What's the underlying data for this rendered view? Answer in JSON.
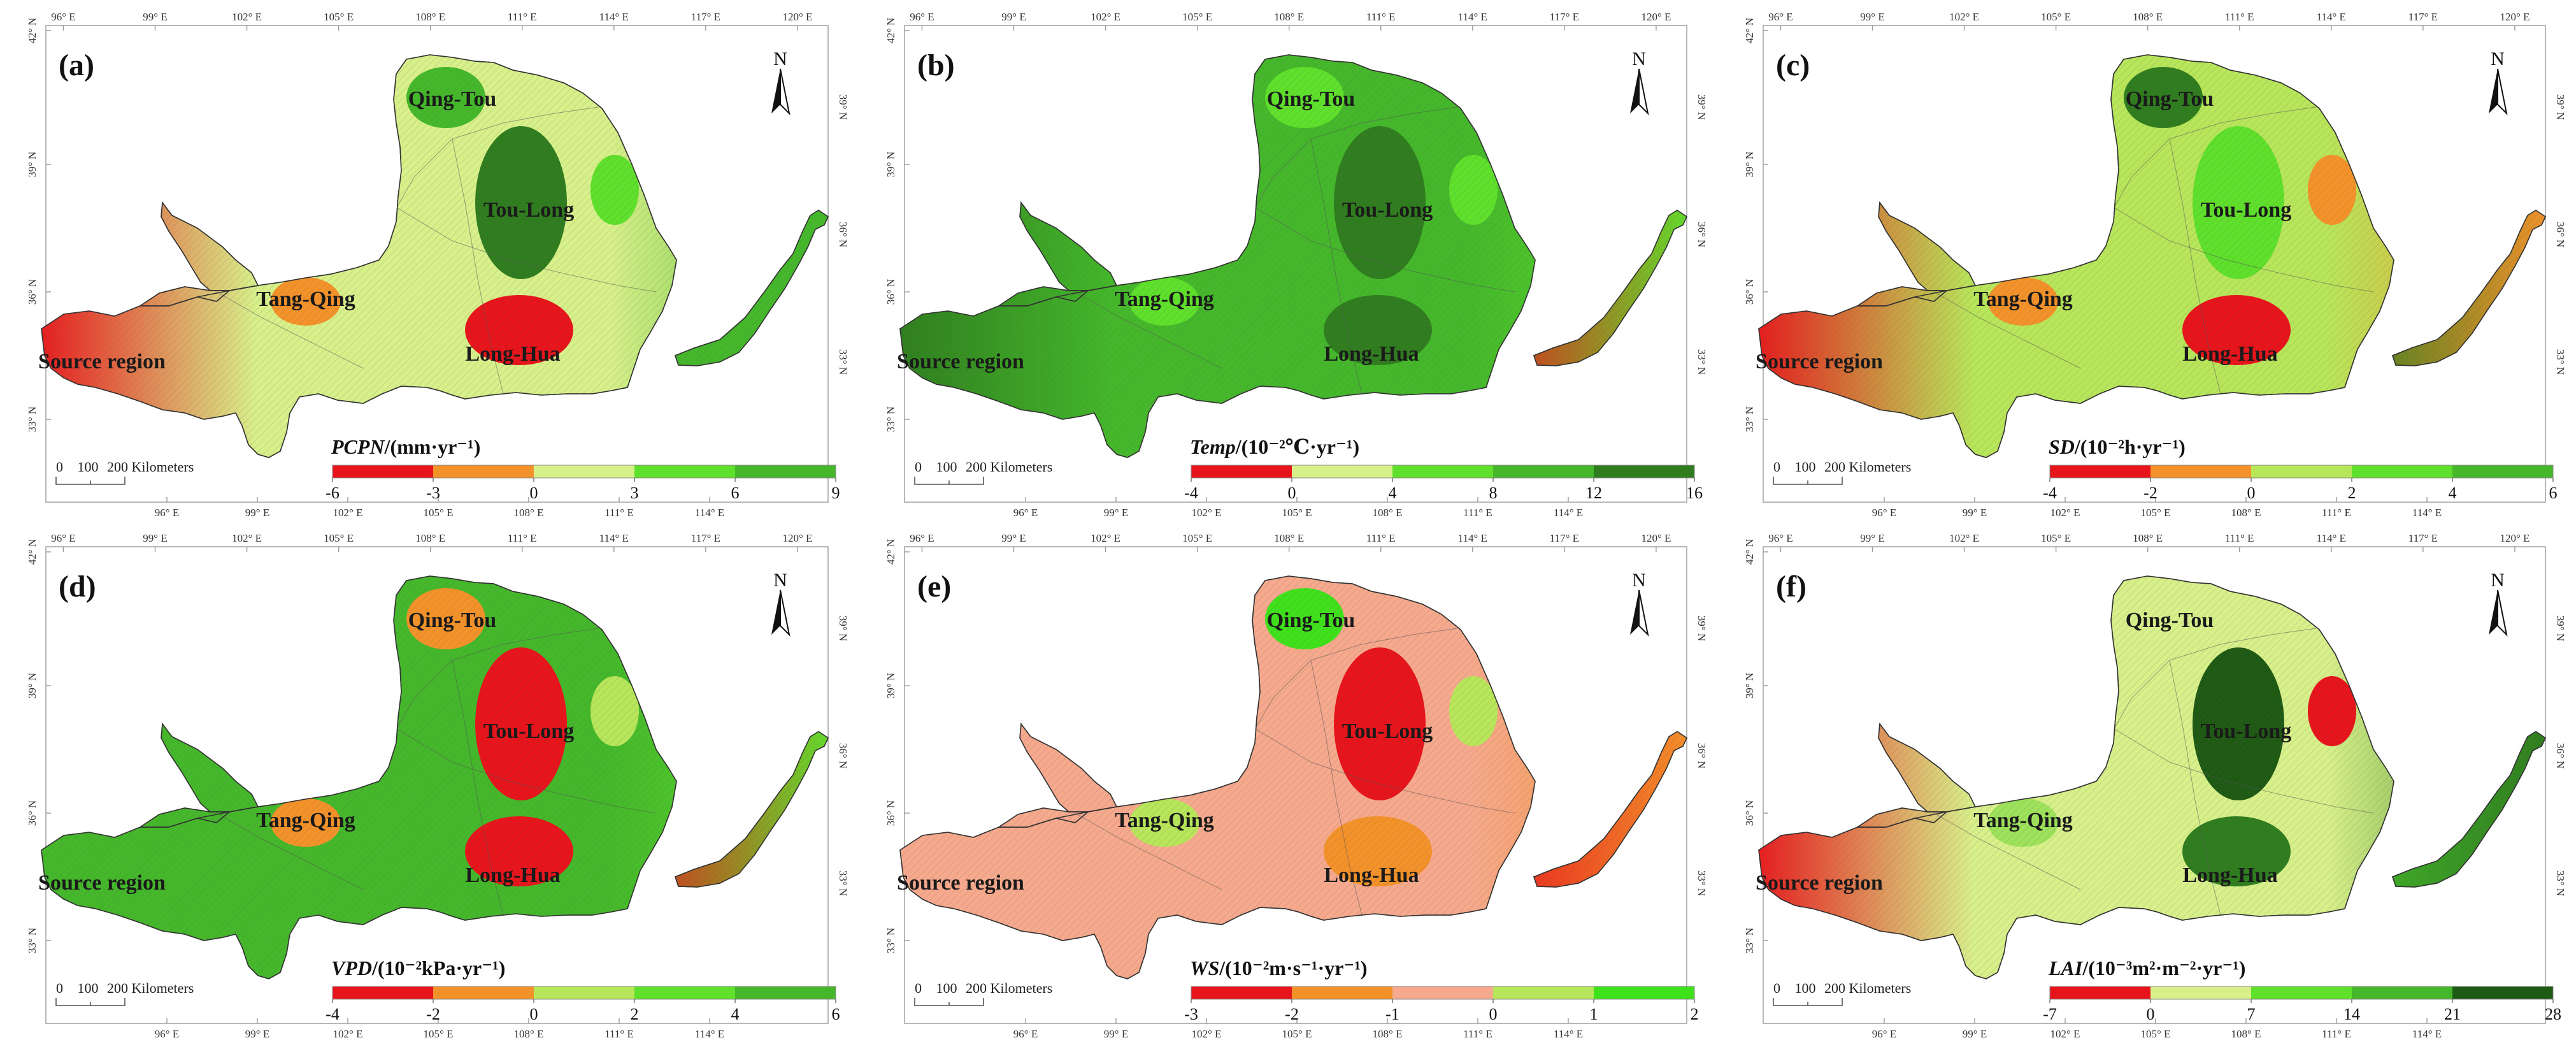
{
  "colors": {
    "red": "#e8141b",
    "orange": "#f4922a",
    "salmon": "#f6a98c",
    "lightyellow": "#d8f08a",
    "yellowgreen": "#b8e65a",
    "lightgreen": "#9de25a",
    "brightgreen": "#5fe02b",
    "vividgreen": "#3fe11a",
    "green": "#44b82a",
    "darkgreen": "#2f7d1e",
    "deepgreen": "#1f5a14",
    "frame": "#9a9a9a"
  },
  "lon_labels": [
    "96° E",
    "99° E",
    "102° E",
    "105° E",
    "108° E",
    "111° E",
    "114° E",
    "117° E",
    "120° E"
  ],
  "lat_labels": [
    "42° N",
    "39° N",
    "36° N",
    "33° N"
  ],
  "north_label": "N",
  "scale": {
    "ticks": [
      "0",
      "100",
      "200 Kilometers"
    ]
  },
  "regions": [
    "Qing-Tou",
    "Tou-Long",
    "Tang-Qing",
    "Long-Hua",
    "Source region"
  ],
  "panels": [
    {
      "letter": "(a)",
      "variable": "PCPN",
      "unit": "/(mm·yr⁻¹)",
      "ticks": [
        "-6",
        "-3",
        "0",
        "3",
        "6",
        "9"
      ],
      "legend_colors": [
        "red",
        "orange",
        "lightyellow",
        "brightgreen",
        "green"
      ],
      "base_color": "lightyellow",
      "west_color": "red",
      "east_color": "green",
      "tail_color": "green",
      "blobs": [
        "green",
        "darkgreen",
        "orange",
        "red",
        "brightgreen"
      ]
    },
    {
      "letter": "(b)",
      "variable": "Temp",
      "unit": "/(10⁻²℃·yr⁻¹)",
      "ticks": [
        "-4",
        "0",
        "4",
        "8",
        "12",
        "16"
      ],
      "legend_colors": [
        "red",
        "lightyellow",
        "brightgreen",
        "green",
        "darkgreen"
      ],
      "base_color": "green",
      "west_color": "darkgreen",
      "east_color": "brightgreen",
      "tail_color": "red",
      "blobs": [
        "brightgreen",
        "darkgreen",
        "brightgreen",
        "darkgreen",
        "brightgreen"
      ]
    },
    {
      "letter": "(c)",
      "variable": "SD",
      "unit": "/(10⁻²h·yr⁻¹)",
      "ticks": [
        "-4",
        "-2",
        "0",
        "2",
        "4",
        "6"
      ],
      "legend_colors": [
        "red",
        "orange",
        "yellowgreen",
        "brightgreen",
        "green"
      ],
      "base_color": "yellowgreen",
      "west_color": "red",
      "east_color": "orange",
      "tail_color": "darkgreen",
      "blobs": [
        "darkgreen",
        "brightgreen",
        "orange",
        "red",
        "orange"
      ]
    },
    {
      "letter": "(d)",
      "variable": "VPD",
      "unit": "/(10⁻²kPa·yr⁻¹)",
      "ticks": [
        "-4",
        "-2",
        "0",
        "2",
        "4",
        "6"
      ],
      "legend_colors": [
        "red",
        "orange",
        "yellowgreen",
        "brightgreen",
        "green"
      ],
      "base_color": "green",
      "west_color": "green",
      "east_color": "brightgreen",
      "tail_color": "red",
      "blobs": [
        "orange",
        "red",
        "orange",
        "red",
        "yellowgreen"
      ]
    },
    {
      "letter": "(e)",
      "variable": "WS",
      "unit": "/(10⁻²m·s⁻¹·yr⁻¹)",
      "ticks": [
        "-3",
        "-2",
        "-1",
        "0",
        "1",
        "2"
      ],
      "legend_colors": [
        "red",
        "orange",
        "salmon",
        "yellowgreen",
        "vividgreen"
      ],
      "base_color": "salmon",
      "west_color": "salmon",
      "east_color": "orange",
      "tail_color": "red",
      "blobs": [
        "vividgreen",
        "red",
        "yellowgreen",
        "orange",
        "yellowgreen"
      ]
    },
    {
      "letter": "(f)",
      "variable": "LAI",
      "unit": "/(10⁻³m²·m⁻²·yr⁻¹)",
      "ticks": [
        "-7",
        "0",
        "7",
        "14",
        "21",
        "28"
      ],
      "legend_colors": [
        "red",
        "lightyellow",
        "brightgreen",
        "green",
        "deepgreen"
      ],
      "base_color": "lightyellow",
      "west_color": "red",
      "east_color": "darkgreen",
      "tail_color": "green",
      "blobs": [
        "lightyellow",
        "deepgreen",
        "lightgreen",
        "darkgreen",
        "red"
      ]
    }
  ]
}
